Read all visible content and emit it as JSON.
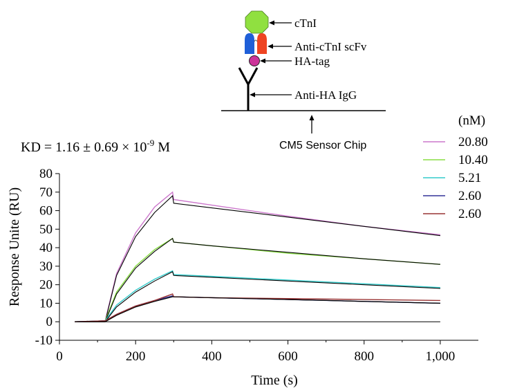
{
  "kd_text": {
    "pre": "KD = 1.16 ± 0.69 × 10",
    "exp": "-9",
    "post": " M"
  },
  "diagram": {
    "labels": {
      "ctni": "cTnI",
      "scfv": "Anti-cTnI scFv",
      "hatag": "HA-tag",
      "igg": "Anti-HA IgG",
      "chip": "CM5 Sensor Chip"
    },
    "colors": {
      "ctni": "#90e040",
      "scfv_left": "#1f5fd8",
      "scfv_right": "#ee4422",
      "hatag": "#cc3399"
    }
  },
  "chart_data": {
    "type": "line",
    "xlabel": "Time (s)",
    "ylabel": "Response Unite (RU)",
    "xlim": [
      0,
      1100
    ],
    "ylim": [
      -10,
      80
    ],
    "xticks": [
      0,
      200,
      400,
      600,
      800,
      1000
    ],
    "xtick_labels": [
      "0",
      "200",
      "400",
      "600",
      "800",
      "1,000"
    ],
    "yticks": [
      -10,
      0,
      10,
      20,
      30,
      40,
      50,
      60,
      70,
      80
    ],
    "ytick_labels": [
      "-10",
      "0",
      "10",
      "20",
      "30",
      "40",
      "50",
      "60",
      "70",
      "80"
    ],
    "grid": false,
    "legend_title": "(nM)",
    "legend_position": "top-right",
    "series": [
      {
        "name": "20.80",
        "color": "#cc77cc",
        "x": [
          40,
          120,
          150,
          200,
          250,
          297,
          300,
          400,
          600,
          800,
          1000
        ],
        "measured_y": [
          0,
          0.5,
          26,
          48,
          62,
          70,
          66,
          63,
          57,
          51.5,
          47
        ],
        "fit_y": [
          0,
          0,
          25,
          46,
          59,
          68,
          64,
          61.5,
          56.5,
          51.5,
          46.5
        ]
      },
      {
        "name": "10.40",
        "color": "#88dd44",
        "x": [
          40,
          120,
          150,
          200,
          250,
          297,
          300,
          400,
          600,
          800,
          1000
        ],
        "measured_y": [
          0,
          0.5,
          16,
          30,
          39,
          45,
          43,
          41,
          37,
          34,
          31
        ],
        "fit_y": [
          0,
          0,
          15,
          29,
          38,
          45,
          43,
          41,
          37.5,
          34,
          31
        ]
      },
      {
        "name": "5.21",
        "color": "#33cccc",
        "x": [
          40,
          120,
          150,
          200,
          250,
          297,
          300,
          400,
          600,
          800,
          1000
        ],
        "measured_y": [
          0,
          0.5,
          9,
          17,
          23,
          27.5,
          25.5,
          24.5,
          22.5,
          20.5,
          18.5
        ],
        "fit_y": [
          0,
          0,
          8,
          16,
          22,
          27,
          25,
          24,
          22,
          20,
          18
        ]
      },
      {
        "name": "2.60",
        "color": "#333399",
        "x": [
          40,
          120,
          150,
          200,
          250,
          297,
          300,
          400,
          600,
          800,
          1000
        ],
        "measured_y": [
          0,
          0.5,
          4,
          8.5,
          11.5,
          14,
          13.5,
          13,
          12,
          11,
          10
        ],
        "fit_y": [
          0,
          0,
          3.5,
          8,
          11,
          13.5,
          13.5,
          13,
          12,
          11,
          10
        ]
      },
      {
        "name": "2.60",
        "color": "#993333",
        "x": [
          40,
          120,
          150,
          200,
          250,
          297,
          300,
          400,
          600,
          800,
          1000
        ],
        "measured_y": [
          0,
          0.5,
          4,
          8.5,
          11.5,
          15,
          13.5,
          13,
          12.5,
          12,
          11.5
        ],
        "fit_y": [
          0,
          0,
          3.5,
          8,
          11,
          13.5,
          13.5,
          13,
          12,
          11,
          10
        ]
      }
    ],
    "baseline": {
      "x": [
        40,
        1000
      ],
      "y": [
        0,
        0
      ]
    }
  }
}
